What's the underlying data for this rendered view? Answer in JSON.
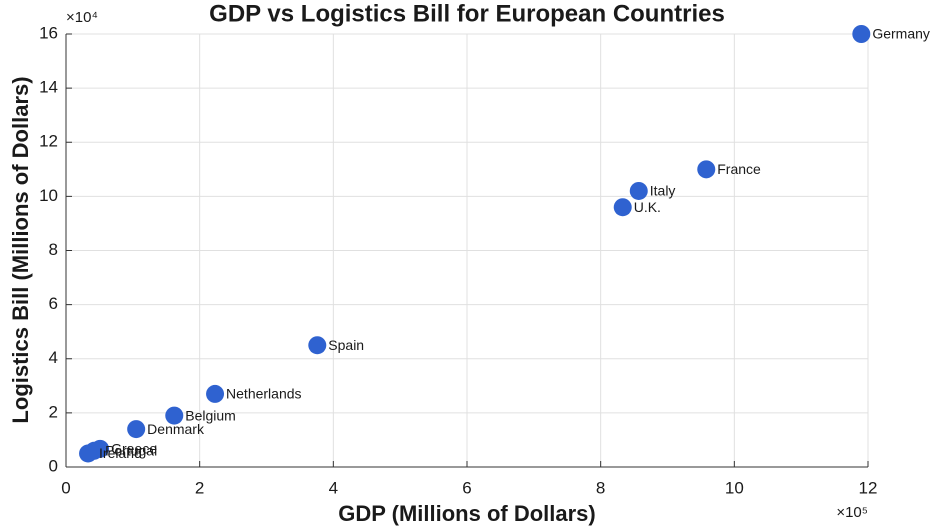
{
  "chart_data": {
    "type": "scatter",
    "title": "GDP vs Logistics Bill for European Countries",
    "x_label": "GDP (Millions of Dollars)",
    "y_label": "Logistics Bill (Millions of Dollars)",
    "x_multiplier": "×10⁵",
    "y_multiplier": "×10⁴",
    "point_labels": [
      "Germany",
      "France",
      "Italy",
      "U.K.",
      "Spain",
      "Netherlands",
      "Belgium",
      "Denmark",
      "Greece",
      "Portugal",
      "Ireland"
    ],
    "x": [
      11.9,
      9.58,
      8.57,
      8.33,
      3.76,
      2.23,
      1.62,
      1.05,
      0.51,
      0.42,
      0.33
    ],
    "values": [
      16.0,
      11.0,
      10.2,
      9.6,
      4.5,
      2.7,
      1.9,
      1.4,
      0.67,
      0.6,
      0.5
    ],
    "color": "#2f62d0",
    "xlim": [
      0,
      12
    ],
    "xticks": [
      0,
      2,
      4,
      6,
      8,
      10,
      12
    ],
    "ylim": [
      0,
      16
    ],
    "yticks": [
      0,
      2,
      4,
      6,
      8,
      10,
      12,
      14,
      16
    ],
    "grid": true
  }
}
